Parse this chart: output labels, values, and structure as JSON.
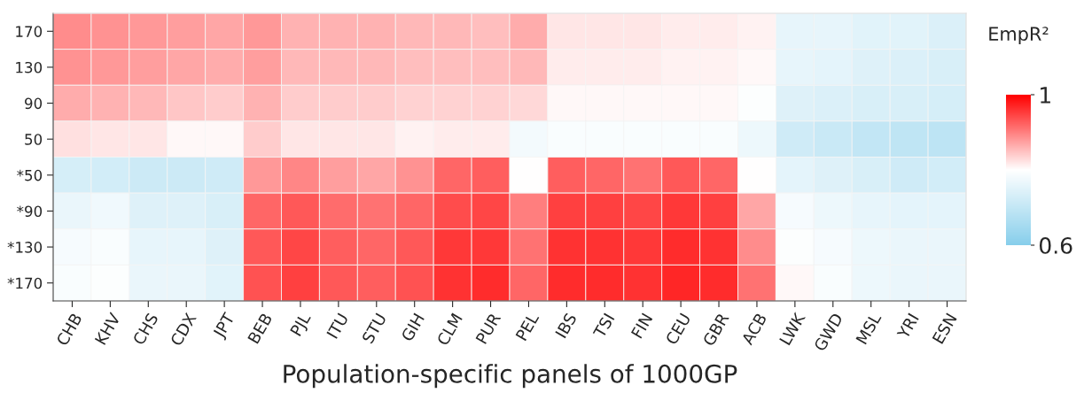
{
  "chart_data": {
    "type": "heatmap",
    "xlabel": "Population-specific panels of 1000GP",
    "clabel": "EmpR²",
    "categories": [
      "CHB",
      "KHV",
      "CHS",
      "CDX",
      "JPT",
      "BEB",
      "PJL",
      "ITU",
      "STU",
      "GIH",
      "CLM",
      "PUR",
      "PEL",
      "IBS",
      "TSI",
      "FIN",
      "CEU",
      "GBR",
      "ACB",
      "LWK",
      "GWD",
      "MSL",
      "YRI",
      "ESN"
    ],
    "y_categories": [
      "170",
      "130",
      "90",
      "50",
      "*50",
      "*90",
      "*130",
      "*170"
    ],
    "cells": [
      [
        0.89,
        0.885,
        0.88,
        0.875,
        0.87,
        0.88,
        0.86,
        0.86,
        0.86,
        0.855,
        0.855,
        0.85,
        0.865,
        0.82,
        0.82,
        0.82,
        0.815,
        0.815,
        0.81,
        0.76,
        0.76,
        0.75,
        0.75,
        0.74
      ],
      [
        0.885,
        0.88,
        0.875,
        0.87,
        0.865,
        0.875,
        0.855,
        0.855,
        0.855,
        0.85,
        0.85,
        0.85,
        0.855,
        0.815,
        0.815,
        0.815,
        0.81,
        0.81,
        0.805,
        0.76,
        0.755,
        0.745,
        0.74,
        0.735
      ],
      [
        0.865,
        0.86,
        0.855,
        0.845,
        0.84,
        0.86,
        0.84,
        0.84,
        0.84,
        0.835,
        0.835,
        0.835,
        0.83,
        0.805,
        0.805,
        0.805,
        0.805,
        0.805,
        0.795,
        0.745,
        0.74,
        0.735,
        0.735,
        0.73
      ],
      [
        0.825,
        0.82,
        0.82,
        0.805,
        0.805,
        0.84,
        0.82,
        0.82,
        0.82,
        0.81,
        0.815,
        0.815,
        0.78,
        0.79,
        0.79,
        0.79,
        0.79,
        0.79,
        0.77,
        0.72,
        0.71,
        0.7,
        0.695,
        0.69
      ],
      [
        0.73,
        0.725,
        0.715,
        0.715,
        0.72,
        0.88,
        0.895,
        0.875,
        0.87,
        0.885,
        0.92,
        0.925,
        0.8,
        0.925,
        0.92,
        0.91,
        0.93,
        0.92,
        0.8,
        0.755,
        0.745,
        0.735,
        0.72,
        0.725
      ],
      [
        0.765,
        0.775,
        0.745,
        0.745,
        0.735,
        0.92,
        0.93,
        0.915,
        0.91,
        0.92,
        0.94,
        0.945,
        0.9,
        0.95,
        0.95,
        0.945,
        0.955,
        0.95,
        0.87,
        0.785,
        0.77,
        0.76,
        0.755,
        0.755
      ],
      [
        0.785,
        0.79,
        0.76,
        0.76,
        0.745,
        0.93,
        0.945,
        0.925,
        0.92,
        0.93,
        0.955,
        0.955,
        0.91,
        0.96,
        0.96,
        0.955,
        0.965,
        0.96,
        0.89,
        0.795,
        0.785,
        0.77,
        0.765,
        0.765
      ],
      [
        0.79,
        0.795,
        0.765,
        0.765,
        0.75,
        0.935,
        0.95,
        0.93,
        0.925,
        0.935,
        0.96,
        0.965,
        0.92,
        0.965,
        0.965,
        0.96,
        0.97,
        0.965,
        0.91,
        0.805,
        0.79,
        0.77,
        0.765,
        0.765
      ]
    ],
    "clim": [
      0.6,
      1
    ],
    "cticks": [
      1,
      0.6
    ]
  }
}
